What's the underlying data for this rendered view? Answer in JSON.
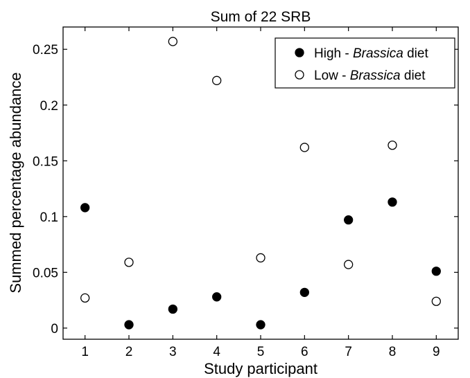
{
  "chart_data": {
    "type": "scatter",
    "title": "Sum of 22 SRB",
    "xlabel": "Study participant",
    "ylabel": "Summed percentage abundance",
    "xlim": [
      0.5,
      9.5
    ],
    "ylim": [
      -0.01,
      0.27
    ],
    "xticks": [
      1,
      2,
      3,
      4,
      5,
      6,
      7,
      8,
      9
    ],
    "yticks": [
      {
        "value": 0,
        "label": "0"
      },
      {
        "value": 0.05,
        "label": "0.05"
      },
      {
        "value": 0.1,
        "label": "0.1"
      },
      {
        "value": 0.15,
        "label": "0.15"
      },
      {
        "value": 0.2,
        "label": "0.2"
      },
      {
        "value": 0.25,
        "label": "0.25"
      }
    ],
    "grid": false,
    "legend_position": "top-right",
    "series": [
      {
        "name": "High - Brassica diet",
        "name_parts": [
          "High - ",
          "Brassica",
          " diet"
        ],
        "marker": "filled-circle",
        "color": "#000000",
        "x": [
          1,
          2,
          3,
          4,
          5,
          6,
          7,
          8,
          9
        ],
        "y": [
          0.108,
          0.003,
          0.017,
          0.028,
          0.003,
          0.032,
          0.097,
          0.113,
          0.051
        ]
      },
      {
        "name": "Low - Brassica diet",
        "name_parts": [
          "Low - ",
          "Brassica",
          " diet"
        ],
        "marker": "open-circle",
        "color": "#000000",
        "x": [
          1,
          2,
          3,
          4,
          5,
          6,
          7,
          8,
          9
        ],
        "y": [
          0.027,
          0.059,
          0.257,
          0.222,
          0.063,
          0.162,
          0.057,
          0.164,
          0.024
        ]
      }
    ]
  }
}
